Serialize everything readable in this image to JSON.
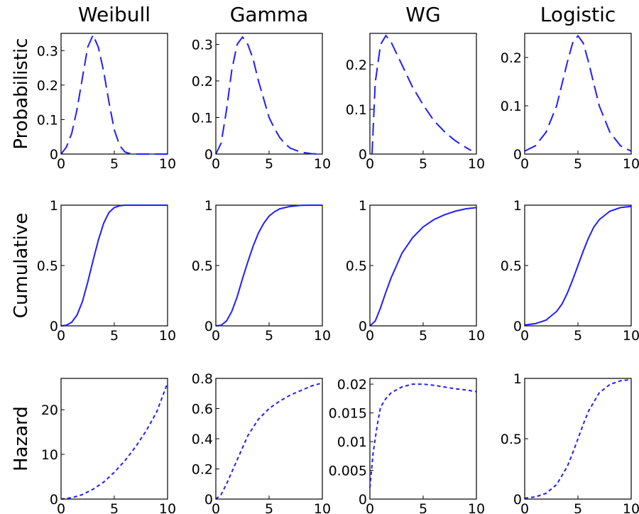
{
  "figure": {
    "column_titles": [
      "Weibull",
      "Gamma",
      "WG",
      "Logistic"
    ],
    "row_labels": [
      "Probabilistic",
      "Cumulative",
      "Hazard"
    ]
  },
  "colors": {
    "curve": "#1f1fff",
    "axes": "#000000",
    "background": "#ffffff"
  },
  "chart_data": [
    {
      "type": "line",
      "row": "Probabilistic",
      "column": "Weibull",
      "line_style": "dashed",
      "xlim": [
        0,
        10
      ],
      "ylim": [
        0,
        0.35
      ],
      "xticks": [
        0,
        5,
        10
      ],
      "yticks": [
        0,
        0.1,
        0.2,
        0.3
      ],
      "ytick_labels": [
        "0",
        "0.1",
        "0.2",
        "0.3"
      ],
      "x": [
        0,
        0.5,
        1,
        1.5,
        2,
        2.5,
        3,
        3.5,
        4,
        4.5,
        5,
        5.5,
        6,
        6.5,
        7,
        8,
        9,
        10
      ],
      "y": [
        0,
        0.02,
        0.06,
        0.13,
        0.22,
        0.31,
        0.345,
        0.31,
        0.24,
        0.15,
        0.07,
        0.025,
        0.006,
        0.001,
        0,
        0,
        0,
        0
      ]
    },
    {
      "type": "line",
      "row": "Probabilistic",
      "column": "Gamma",
      "line_style": "dashed",
      "xlim": [
        0,
        10
      ],
      "ylim": [
        0,
        0.33
      ],
      "xticks": [
        0,
        5,
        10
      ],
      "yticks": [
        0,
        0.1,
        0.2,
        0.3
      ],
      "ytick_labels": [
        "0",
        "0.1",
        "0.2",
        "0.3"
      ],
      "x": [
        0,
        0.5,
        1,
        1.5,
        2,
        2.5,
        3,
        3.5,
        4,
        4.5,
        5,
        5.5,
        6,
        6.5,
        7,
        8,
        9,
        10
      ],
      "y": [
        0,
        0.03,
        0.12,
        0.23,
        0.3,
        0.32,
        0.3,
        0.26,
        0.2,
        0.15,
        0.1,
        0.07,
        0.045,
        0.028,
        0.016,
        0.005,
        0.001,
        0
      ]
    },
    {
      "type": "line",
      "row": "Probabilistic",
      "column": "WG",
      "line_style": "dashed",
      "xlim": [
        0,
        10
      ],
      "ylim": [
        0,
        0.27
      ],
      "xticks": [
        0,
        5,
        10
      ],
      "yticks": [
        0,
        0.1,
        0.2
      ],
      "ytick_labels": [
        "0",
        "0.1",
        "0.2"
      ],
      "x": [
        0.2,
        0.5,
        1,
        1.5,
        2,
        2.5,
        3,
        4,
        5,
        6,
        7,
        8,
        9,
        9.5
      ],
      "y": [
        0.0,
        0.16,
        0.245,
        0.265,
        0.25,
        0.225,
        0.2,
        0.15,
        0.11,
        0.075,
        0.05,
        0.03,
        0.015,
        0.008
      ]
    },
    {
      "type": "line",
      "row": "Probabilistic",
      "column": "Logistic",
      "line_style": "dashed",
      "xlim": [
        0,
        10
      ],
      "ylim": [
        0,
        0.25
      ],
      "xticks": [
        0,
        5,
        10
      ],
      "yticks": [
        0,
        0.1,
        0.2
      ],
      "ytick_labels": [
        "0",
        "0.1",
        "0.2"
      ],
      "x": [
        0,
        1,
        2,
        3,
        4,
        4.5,
        5,
        5.5,
        6,
        7,
        8,
        9,
        10
      ],
      "y": [
        0.006,
        0.017,
        0.045,
        0.1,
        0.19,
        0.23,
        0.245,
        0.23,
        0.19,
        0.1,
        0.045,
        0.017,
        0.006
      ]
    },
    {
      "type": "line",
      "row": "Cumulative",
      "column": "Weibull",
      "line_style": "solid",
      "xlim": [
        0,
        10
      ],
      "ylim": [
        0,
        1
      ],
      "xticks": [
        0,
        5,
        10
      ],
      "yticks": [
        0,
        0.5,
        1
      ],
      "ytick_labels": [
        "0",
        "0.5",
        "1"
      ],
      "x": [
        0,
        0.5,
        1,
        1.5,
        2,
        2.5,
        3,
        3.5,
        4,
        4.5,
        5,
        5.5,
        6,
        7,
        8,
        9,
        10
      ],
      "y": [
        0,
        0.005,
        0.03,
        0.09,
        0.2,
        0.36,
        0.54,
        0.71,
        0.85,
        0.94,
        0.98,
        0.995,
        1,
        1,
        1,
        1,
        1
      ]
    },
    {
      "type": "line",
      "row": "Cumulative",
      "column": "Gamma",
      "line_style": "solid",
      "xlim": [
        0,
        10
      ],
      "ylim": [
        0,
        1
      ],
      "xticks": [
        0,
        5,
        10
      ],
      "yticks": [
        0,
        0.5,
        1
      ],
      "ytick_labels": [
        "0",
        "0.5",
        "1"
      ],
      "x": [
        0,
        0.5,
        1,
        1.5,
        2,
        2.5,
        3,
        3.5,
        4,
        4.5,
        5,
        5.5,
        6,
        7,
        8,
        9,
        10
      ],
      "y": [
        0,
        0.005,
        0.04,
        0.12,
        0.24,
        0.39,
        0.53,
        0.66,
        0.77,
        0.85,
        0.91,
        0.945,
        0.97,
        0.99,
        0.998,
        1,
        1
      ]
    },
    {
      "type": "line",
      "row": "Cumulative",
      "column": "WG",
      "line_style": "solid",
      "xlim": [
        0,
        10
      ],
      "ylim": [
        0,
        1
      ],
      "xticks": [
        0,
        5,
        10
      ],
      "yticks": [
        0,
        0.5,
        1
      ],
      "ytick_labels": [
        "0",
        "0.5",
        "1"
      ],
      "x": [
        0,
        0.5,
        1,
        1.5,
        2,
        2.5,
        3,
        4,
        5,
        6,
        7,
        8,
        9,
        10
      ],
      "y": [
        0,
        0.04,
        0.15,
        0.28,
        0.4,
        0.5,
        0.6,
        0.73,
        0.82,
        0.88,
        0.92,
        0.95,
        0.97,
        0.98
      ]
    },
    {
      "type": "line",
      "row": "Cumulative",
      "column": "Logistic",
      "line_style": "solid",
      "xlim": [
        0,
        10
      ],
      "ylim": [
        0,
        1
      ],
      "xticks": [
        0,
        5,
        10
      ],
      "yticks": [
        0,
        0.5,
        1
      ],
      "ytick_labels": [
        "0",
        "0.5",
        "1"
      ],
      "x": [
        0,
        1,
        2,
        3,
        3.5,
        4,
        4.5,
        5,
        5.5,
        6,
        6.5,
        7,
        8,
        9,
        10
      ],
      "y": [
        0.007,
        0.018,
        0.047,
        0.12,
        0.18,
        0.27,
        0.38,
        0.5,
        0.62,
        0.73,
        0.82,
        0.88,
        0.95,
        0.98,
        0.99
      ]
    },
    {
      "type": "line",
      "row": "Hazard",
      "column": "Weibull",
      "line_style": "dotted",
      "xlim": [
        0,
        10
      ],
      "ylim": [
        0,
        27
      ],
      "xticks": [
        0,
        5,
        10
      ],
      "yticks": [
        0,
        10,
        20
      ],
      "ytick_labels": [
        "0",
        "10",
        "20"
      ],
      "x": [
        0,
        1,
        2,
        3,
        4,
        5,
        6,
        7,
        8,
        9,
        10
      ],
      "y": [
        0,
        0.3,
        1,
        2.2,
        3.8,
        6,
        8.6,
        11.7,
        15.3,
        19.6,
        26
      ]
    },
    {
      "type": "line",
      "row": "Hazard",
      "column": "Gamma",
      "line_style": "dotted",
      "xlim": [
        0,
        10
      ],
      "ylim": [
        0,
        0.8
      ],
      "xticks": [
        0,
        5,
        10
      ],
      "yticks": [
        0,
        0.2,
        0.4,
        0.6,
        0.8
      ],
      "ytick_labels": [
        "0",
        "0.2",
        "0.4",
        "0.6",
        "0.8"
      ],
      "x": [
        0,
        0.5,
        1,
        1.5,
        2,
        3,
        4,
        5,
        6,
        7,
        8,
        9,
        10
      ],
      "y": [
        0,
        0.03,
        0.1,
        0.18,
        0.26,
        0.42,
        0.53,
        0.6,
        0.65,
        0.69,
        0.72,
        0.75,
        0.77
      ]
    },
    {
      "type": "line",
      "row": "Hazard",
      "column": "WG",
      "line_style": "dotted",
      "xlim": [
        0,
        10
      ],
      "ylim": [
        0,
        0.021
      ],
      "xticks": [
        0,
        5,
        10
      ],
      "yticks": [
        0,
        0.005,
        0.01,
        0.015,
        0.02
      ],
      "ytick_labels": [
        "0",
        "0.005",
        "0.01",
        "0.015",
        "0.02"
      ],
      "x": [
        0,
        0.3,
        0.7,
        1,
        1.5,
        2,
        3,
        4,
        5,
        6,
        7,
        8,
        9,
        10
      ],
      "y": [
        0.002,
        0.008,
        0.013,
        0.016,
        0.0175,
        0.0185,
        0.0195,
        0.02,
        0.02,
        0.0198,
        0.0195,
        0.0192,
        0.019,
        0.0187
      ]
    },
    {
      "type": "line",
      "row": "Hazard",
      "column": "Logistic",
      "line_style": "dotted",
      "xlim": [
        0,
        10
      ],
      "ylim": [
        0,
        1
      ],
      "xticks": [
        0,
        5,
        10
      ],
      "yticks": [
        0,
        0.5,
        1
      ],
      "ytick_labels": [
        "0",
        "0.5",
        "1"
      ],
      "x": [
        0,
        1,
        2,
        3,
        4,
        4.5,
        5,
        5.5,
        6,
        7,
        8,
        9,
        10
      ],
      "y": [
        0.007,
        0.018,
        0.047,
        0.12,
        0.27,
        0.38,
        0.5,
        0.62,
        0.73,
        0.88,
        0.95,
        0.98,
        0.99
      ]
    }
  ]
}
